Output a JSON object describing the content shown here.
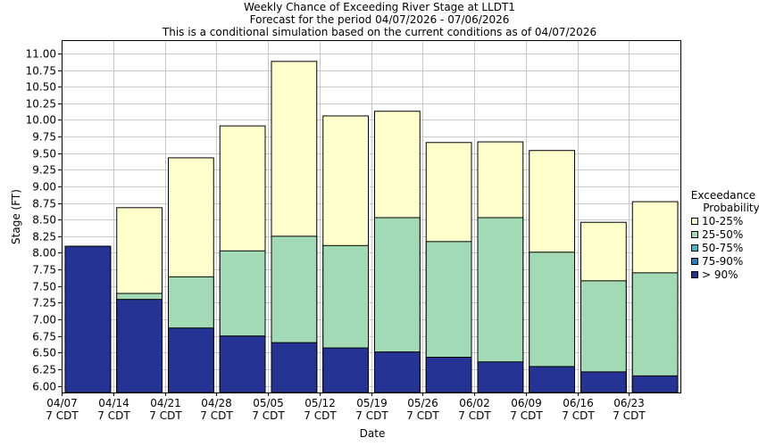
{
  "chart_data": {
    "type": "bar",
    "title": "Weekly Chance of Exceeding River Stage at LLDT1",
    "subtitle": "Forecast for the period 04/07/2026 - 07/06/2026",
    "subtitle2": "This is a conditional simulation based on the current conditions as of 04/07/2026",
    "xlabel": "Date",
    "ylabel": "Stage (FT)",
    "ylim": [
      5.9,
      11.2
    ],
    "yticks": [
      "11.00",
      "10.75",
      "10.50",
      "10.25",
      "10.00",
      "9.75",
      "9.50",
      "9.25",
      "9.00",
      "8.75",
      "8.50",
      "8.25",
      "8.00",
      "7.75",
      "7.50",
      "7.25",
      "7.00",
      "6.75",
      "6.50",
      "6.25",
      "6.00"
    ],
    "xticks": [
      {
        "line1": "04/07",
        "line2": "7 CDT"
      },
      {
        "line1": "04/14",
        "line2": "7 CDT"
      },
      {
        "line1": "04/21",
        "line2": "7 CDT"
      },
      {
        "line1": "04/28",
        "line2": "7 CDT"
      },
      {
        "line1": "05/05",
        "line2": "7 CDT"
      },
      {
        "line1": "05/12",
        "line2": "7 CDT"
      },
      {
        "line1": "05/19",
        "line2": "7 CDT"
      },
      {
        "line1": "05/26",
        "line2": "7 CDT"
      },
      {
        "line1": "06/02",
        "line2": "7 CDT"
      },
      {
        "line1": "06/09",
        "line2": "7 CDT"
      },
      {
        "line1": "06/16",
        "line2": "7 CDT"
      },
      {
        "line1": "06/23",
        "line2": "7 CDT"
      }
    ],
    "bars": [
      {
        "week": "04/07",
        "gt90": 8.1,
        "p25_50": 8.1,
        "p10_25": 8.1
      },
      {
        "week": "04/14",
        "gt90": 7.3,
        "p25_50": 7.39,
        "p10_25": 8.68
      },
      {
        "week": "04/21",
        "gt90": 6.87,
        "p25_50": 7.64,
        "p10_25": 9.43
      },
      {
        "week": "04/28",
        "gt90": 6.75,
        "p25_50": 8.03,
        "p10_25": 9.91
      },
      {
        "week": "05/05",
        "gt90": 6.65,
        "p25_50": 8.25,
        "p10_25": 10.88
      },
      {
        "week": "05/12",
        "gt90": 6.57,
        "p25_50": 8.11,
        "p10_25": 10.06
      },
      {
        "week": "05/19",
        "gt90": 6.51,
        "p25_50": 8.53,
        "p10_25": 10.13
      },
      {
        "week": "05/26",
        "gt90": 6.43,
        "p25_50": 8.17,
        "p10_25": 9.66
      },
      {
        "week": "06/02",
        "gt90": 6.36,
        "p25_50": 8.53,
        "p10_25": 9.67
      },
      {
        "week": "06/09",
        "gt90": 6.29,
        "p25_50": 8.01,
        "p10_25": 9.54
      },
      {
        "week": "06/16",
        "gt90": 6.21,
        "p25_50": 7.58,
        "p10_25": 8.46
      },
      {
        "week": "06/23",
        "gt90": 6.15,
        "p25_50": 7.7,
        "p10_25": 8.77
      }
    ],
    "legend": {
      "title_line1": "Exceedance",
      "title_line2": "Probability",
      "placement": "right",
      "items": [
        {
          "label": "10-25%",
          "color": "#ffffcc"
        },
        {
          "label": "25-50%",
          "color": "#a1dab4"
        },
        {
          "label": "50-75%",
          "color": "#41b6c4"
        },
        {
          "label": "75-90%",
          "color": "#2c7fb8"
        },
        {
          "label": "> 90%",
          "color": "#253494"
        }
      ]
    },
    "grid": true,
    "colors": {
      "gt90": "#253494",
      "p25_50": "#a1dab4",
      "p10_25": "#ffffcc",
      "grid": "#c8c8c8"
    }
  }
}
